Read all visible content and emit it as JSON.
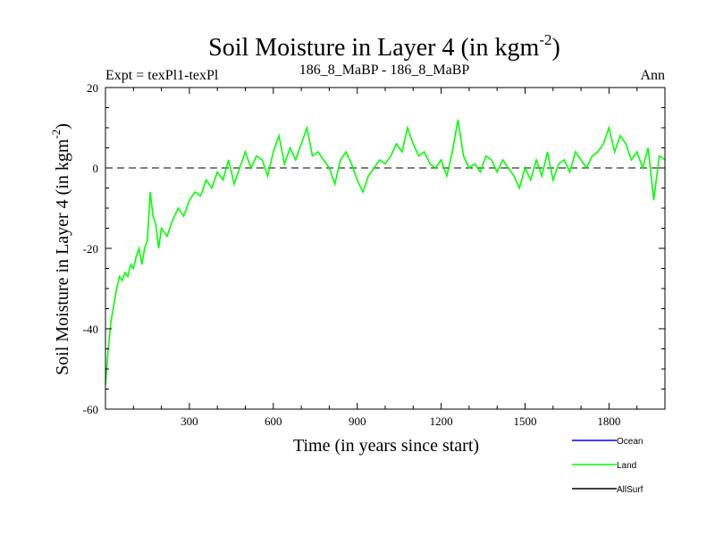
{
  "chart_data": {
    "type": "line",
    "title": "Soil Moisture in Layer 4 (in kgm",
    "title_sup": "-2",
    "title_close": ")",
    "top_left": "Expt = texPl1-texPl",
    "top_center": "186_8_MaBP - 186_8_MaBP",
    "top_right": "Ann",
    "xlabel": "Time (in years since start)",
    "ylabel": "Soil Moisture in Layer 4 (in kgm",
    "ylabel_sup": "-2",
    "ylabel_close": ")",
    "xlim": [
      0,
      2000
    ],
    "ylim": [
      -60,
      20
    ],
    "xticks": [
      300,
      600,
      900,
      1200,
      1500,
      1800
    ],
    "yticks": [
      20,
      0,
      -20,
      -40,
      -60
    ],
    "zero_line": 0,
    "legend": [
      {
        "name": "Ocean",
        "color": "#0000ff"
      },
      {
        "name": "Land",
        "color": "#00ff00"
      },
      {
        "name": "AllSurf",
        "color": "#000000"
      }
    ],
    "series": [
      {
        "name": "Land",
        "color": "#00ff00",
        "x": [
          0,
          10,
          20,
          30,
          40,
          50,
          60,
          70,
          80,
          90,
          100,
          110,
          120,
          130,
          140,
          150,
          160,
          170,
          180,
          190,
          200,
          220,
          240,
          260,
          280,
          300,
          320,
          340,
          360,
          380,
          400,
          420,
          440,
          460,
          480,
          500,
          520,
          540,
          560,
          580,
          600,
          620,
          640,
          660,
          680,
          700,
          720,
          740,
          760,
          780,
          800,
          820,
          840,
          860,
          880,
          900,
          920,
          940,
          960,
          980,
          1000,
          1020,
          1040,
          1060,
          1080,
          1100,
          1120,
          1140,
          1160,
          1180,
          1200,
          1220,
          1240,
          1260,
          1280,
          1300,
          1320,
          1340,
          1360,
          1380,
          1400,
          1420,
          1440,
          1460,
          1480,
          1500,
          1520,
          1540,
          1560,
          1580,
          1600,
          1620,
          1640,
          1660,
          1680,
          1700,
          1720,
          1740,
          1760,
          1780,
          1800,
          1820,
          1840,
          1860,
          1880,
          1900,
          1920,
          1940,
          1960,
          1980,
          2000
        ],
        "values": [
          -54,
          -45,
          -38,
          -34,
          -30,
          -27,
          -28,
          -26,
          -27,
          -24,
          -25,
          -22,
          -20,
          -24,
          -20,
          -18,
          -6,
          -12,
          -14,
          -20,
          -15,
          -17,
          -13,
          -10,
          -12,
          -8,
          -6,
          -7,
          -3,
          -5,
          -1,
          -3,
          2,
          -4,
          0,
          4,
          0,
          3,
          2,
          -2,
          4,
          8,
          1,
          5,
          2,
          6,
          10,
          3,
          4,
          2,
          0,
          -4,
          2,
          4,
          1,
          -3,
          -6,
          -2,
          0,
          2,
          1,
          3,
          6,
          4,
          10,
          6,
          3,
          4,
          1,
          0,
          2,
          -2,
          4,
          12,
          3,
          0,
          1,
          -1,
          3,
          2,
          -1,
          2,
          0,
          -2,
          -5,
          0,
          -3,
          2,
          -2,
          4,
          -3,
          1,
          2,
          -1,
          4,
          2,
          0,
          3,
          4,
          6,
          10,
          4,
          8,
          6,
          2,
          4,
          0,
          5,
          -8,
          3,
          2
        ]
      }
    ]
  }
}
